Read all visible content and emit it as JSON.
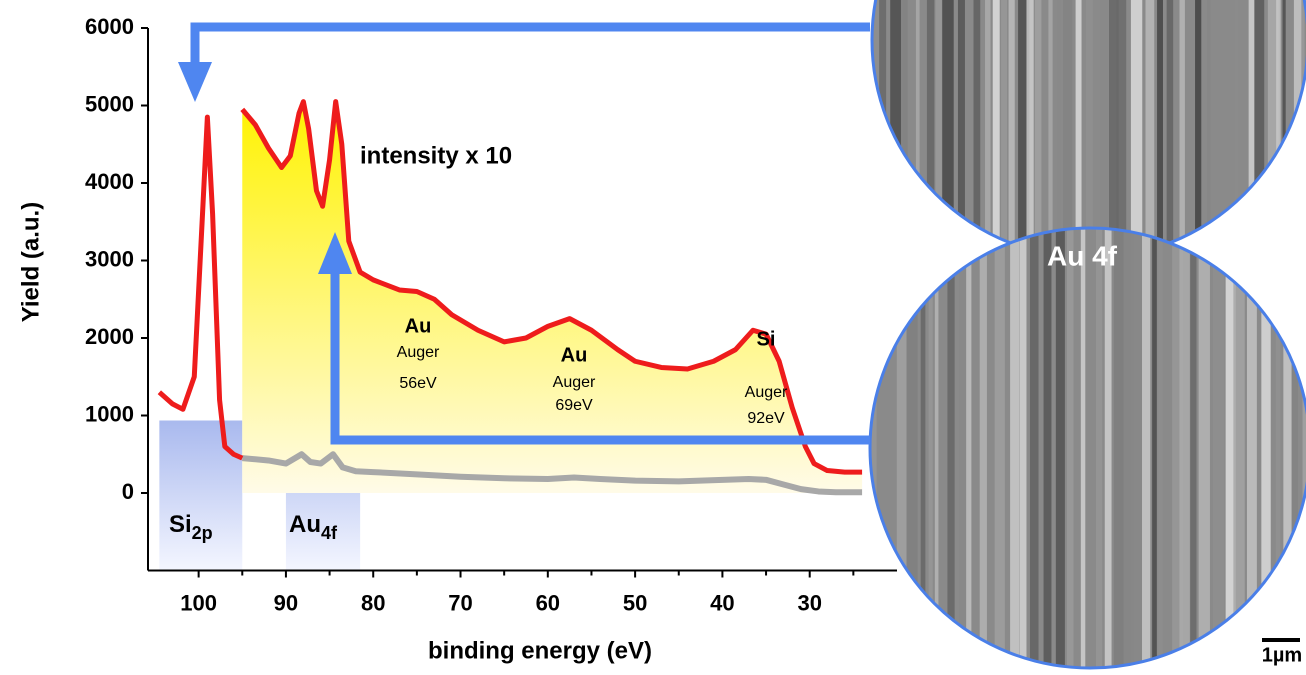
{
  "chart_data": {
    "type": "line",
    "x_label": "binding energy (eV)",
    "y_label": "Yield (a.u.)",
    "xlim": [
      105.8,
      20
    ],
    "ylim": [
      -1000,
      6000
    ],
    "xticks": [
      100,
      90,
      80,
      70,
      60,
      50,
      40,
      30
    ],
    "yticks": [
      0,
      1000,
      2000,
      3000,
      4000,
      5000,
      6000
    ],
    "series": [
      {
        "color": "#ee1c1c",
        "x": [
          104.5,
          103,
          101.8,
          100.5,
          99.6,
          99,
          98.4,
          97.6,
          97,
          96,
          95
        ],
        "values": [
          1300,
          1150,
          1080,
          1500,
          3500,
          4850,
          3600,
          1200,
          600,
          500,
          450
        ]
      },
      {
        "color": "#ee1c1c",
        "fill": "#fff200",
        "x": [
          95,
          93.5,
          92,
          90.5,
          89.5,
          88.5,
          88,
          87.4,
          86.5,
          85.8,
          85,
          84.3,
          83.6,
          82.8,
          81.5,
          80,
          77,
          75,
          73,
          71,
          68,
          65,
          62.5,
          60,
          57.5,
          55,
          52,
          50,
          47,
          44,
          41,
          38.5,
          36.5,
          35,
          33.5,
          32,
          30.5,
          29.5,
          28,
          26,
          24
        ],
        "values": [
          4950,
          4750,
          4450,
          4200,
          4350,
          4900,
          5050,
          4700,
          3900,
          3700,
          4300,
          5050,
          4500,
          3250,
          2850,
          2750,
          2620,
          2600,
          2500,
          2300,
          2100,
          1950,
          2000,
          2150,
          2250,
          2100,
          1850,
          1700,
          1620,
          1600,
          1700,
          1850,
          2100,
          2050,
          1700,
          1100,
          600,
          380,
          290,
          270,
          270
        ]
      },
      {
        "color": "#a8a8a8",
        "x": [
          95,
          92,
          90,
          88.2,
          87.2,
          86,
          84.6,
          83.5,
          82,
          80,
          75,
          70,
          65,
          60,
          57,
          54,
          50,
          45,
          40,
          37,
          35,
          33,
          31,
          29,
          27,
          24
        ],
        "values": [
          450,
          420,
          380,
          500,
          400,
          380,
          500,
          330,
          280,
          270,
          240,
          210,
          190,
          180,
          200,
          180,
          160,
          150,
          170,
          180,
          170,
          110,
          50,
          20,
          10,
          10
        ]
      }
    ],
    "regions": [
      {
        "from": 104.5,
        "to": 95,
        "label": "Si",
        "sub": "2p"
      },
      {
        "from": 90,
        "to": 81.5,
        "label": "Au",
        "sub": "4f"
      }
    ],
    "annotations": [
      "intensity x 10",
      "Au",
      "Auger",
      "56eV",
      "Au",
      "Auger",
      "69eV",
      "Si",
      "Auger",
      "92eV"
    ],
    "image_label": "Au 4f",
    "scale_bar": "1µm"
  }
}
